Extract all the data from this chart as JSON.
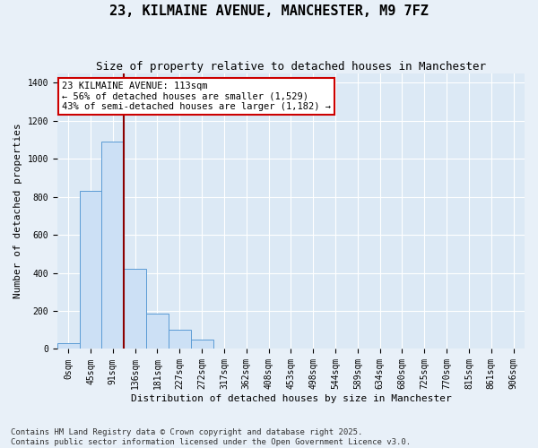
{
  "title": "23, KILMAINE AVENUE, MANCHESTER, M9 7FZ",
  "subtitle": "Size of property relative to detached houses in Manchester",
  "xlabel": "Distribution of detached houses by size in Manchester",
  "ylabel": "Number of detached properties",
  "annotation_text": "23 KILMAINE AVENUE: 113sqm\n← 56% of detached houses are smaller (1,529)\n43% of semi-detached houses are larger (1,182) →",
  "footer_line1": "Contains HM Land Registry data © Crown copyright and database right 2025.",
  "footer_line2": "Contains public sector information licensed under the Open Government Licence v3.0.",
  "bar_color": "#cce0f5",
  "bar_edge_color": "#5b9bd5",
  "background_color": "#e8f0f8",
  "plot_bg_color": "#dce9f5",
  "grid_color": "#ffffff",
  "vline_color": "#8b0000",
  "annotation_box_color": "#cc0000",
  "categories": [
    "0sqm",
    "45sqm",
    "91sqm",
    "136sqm",
    "181sqm",
    "227sqm",
    "272sqm",
    "317sqm",
    "362sqm",
    "408sqm",
    "453sqm",
    "498sqm",
    "544sqm",
    "589sqm",
    "634sqm",
    "680sqm",
    "725sqm",
    "770sqm",
    "815sqm",
    "861sqm",
    "906sqm"
  ],
  "values": [
    30,
    830,
    1090,
    420,
    185,
    100,
    48,
    0,
    0,
    0,
    0,
    0,
    0,
    0,
    0,
    0,
    0,
    0,
    0,
    0,
    0
  ],
  "vline_position": 2.5,
  "ylim": [
    0,
    1450
  ],
  "yticks": [
    0,
    200,
    400,
    600,
    800,
    1000,
    1200,
    1400
  ],
  "title_fontsize": 11,
  "subtitle_fontsize": 9,
  "axis_label_fontsize": 8,
  "tick_fontsize": 7,
  "annotation_fontsize": 7.5,
  "footer_fontsize": 6.5
}
